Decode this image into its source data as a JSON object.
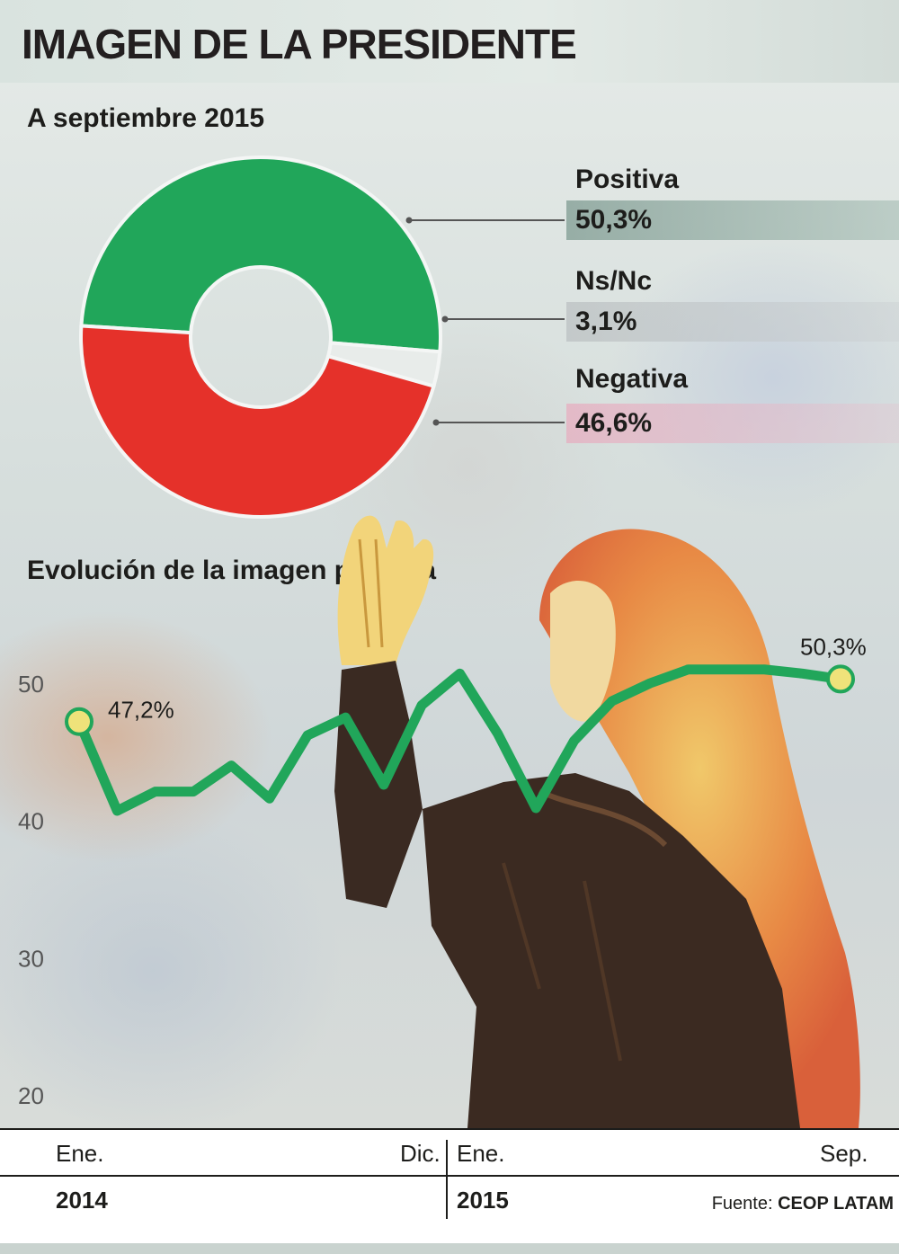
{
  "header": {
    "title": "IMAGEN DE LA PRESIDENTE"
  },
  "donut": {
    "subtitle": "A septiembre 2015",
    "legend": [
      {
        "label": "Positiva",
        "value": "50,3%"
      },
      {
        "label": "Ns/Nc",
        "value": "3,1%"
      },
      {
        "label": "Negativa",
        "value": "46,6%"
      }
    ]
  },
  "line": {
    "subtitle": "Evolución de la imagen positiva",
    "first_label": "47,2%",
    "last_label": "50,3%"
  },
  "x_axis": {
    "ticks": [
      "Ene.",
      "Dic.",
      "Ene.",
      "Sep."
    ],
    "years": [
      "2014",
      "2015"
    ]
  },
  "source": {
    "prefix": "Fuente:",
    "name": "CEOP LATAM"
  },
  "chart_data": [
    {
      "type": "pie",
      "title": "A septiembre 2015",
      "categories": [
        "Positiva",
        "Ns/Nc",
        "Negativa"
      ],
      "values": [
        50.3,
        3.1,
        46.6
      ],
      "colors": [
        "#21a65a",
        "#e8ecea",
        "#e5312a"
      ],
      "donut": true
    },
    {
      "type": "line",
      "title": "Evolución de la imagen positiva",
      "x": [
        "Ene. 2014",
        "Feb. 2014",
        "Mar. 2014",
        "Abr. 2014",
        "May. 2014",
        "Jun. 2014",
        "Jul. 2014",
        "Ago. 2014",
        "Sep. 2014",
        "Oct. 2014",
        "Nov. 2014",
        "Dic. 2014",
        "Ene. 2015",
        "Feb. 2015",
        "Mar. 2015",
        "Abr. 2015",
        "May. 2015",
        "Jun. 2015",
        "Jul. 2015",
        "Ago. 2015",
        "Sep. 2015"
      ],
      "y": [
        47.2,
        40.7,
        42.1,
        42.1,
        44.0,
        41.6,
        46.2,
        47.5,
        42.6,
        48.4,
        50.7,
        46.3,
        40.9,
        45.8,
        48.7,
        50.0,
        51.0,
        51.0,
        51.0,
        50.7,
        50.3
      ],
      "ylim": [
        20,
        52
      ],
      "yticks": [
        20,
        30,
        40,
        50
      ],
      "data_labels": {
        "first": "47,2%",
        "last": "50,3%"
      },
      "color": "#21a65a",
      "grid": false
    }
  ]
}
